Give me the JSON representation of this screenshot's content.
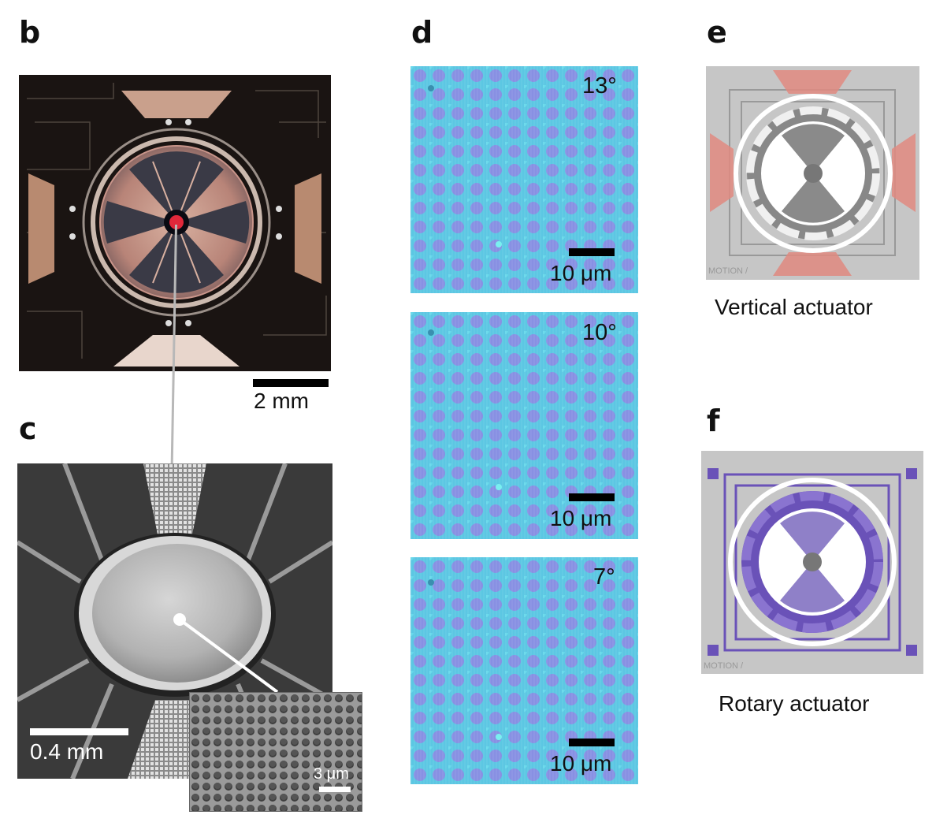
{
  "panels": {
    "b": {
      "letter": "b",
      "scalebar": "2 mm"
    },
    "c": {
      "letter": "c",
      "scalebar": "0.4 mm",
      "inset_scalebar": "3 μm"
    },
    "d": {
      "letter": "d",
      "images": [
        {
          "angle": "13°",
          "scalebar": "10 μm"
        },
        {
          "angle": "10°",
          "scalebar": "10 μm"
        },
        {
          "angle": "7°",
          "scalebar": "10 μm"
        }
      ]
    },
    "e": {
      "letter": "e",
      "caption": "Vertical actuator",
      "watermark": "MOTION /",
      "highlight_color": "#e08a80"
    },
    "f": {
      "letter": "f",
      "caption": "Rotary actuator",
      "watermark": "MOTION /",
      "highlight_color": "#6a52b8"
    }
  },
  "colors": {
    "grating_a": "#4fc9e6",
    "grating_b": "#9a7fe6",
    "chip_bg": "#1a1412",
    "sem_bg": "#3a3a3a"
  }
}
